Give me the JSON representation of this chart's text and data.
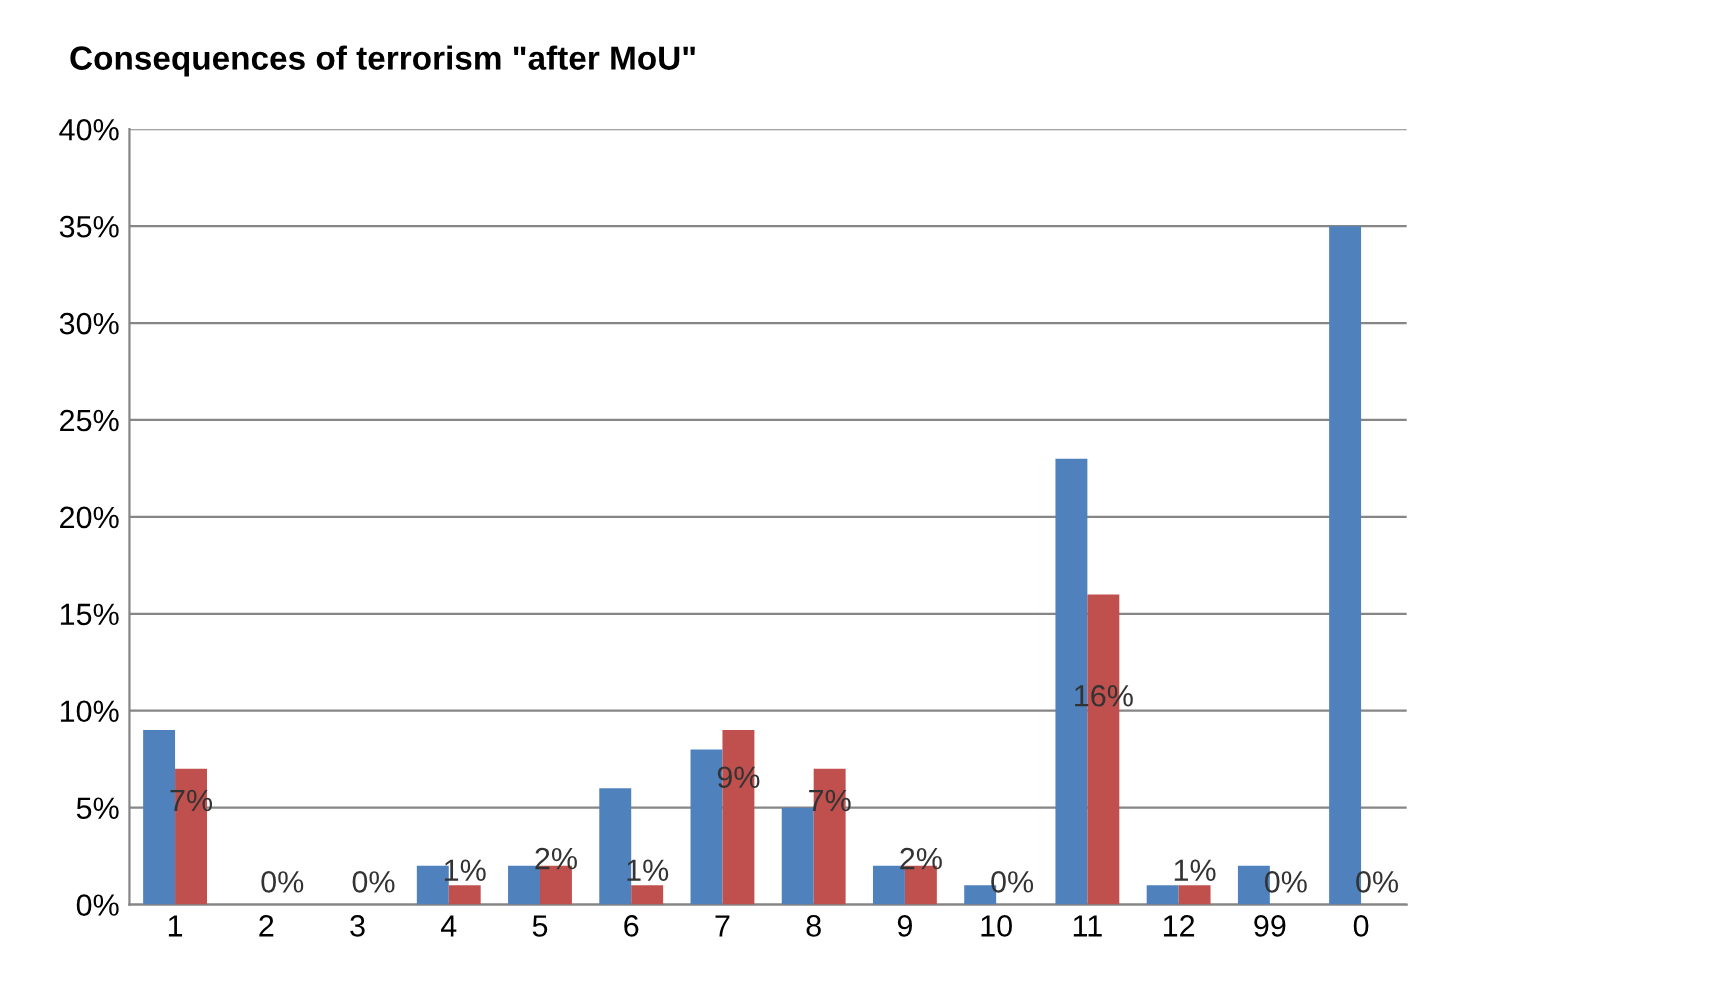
{
  "chart_data": {
    "type": "bar",
    "title": "Consequences of terrorism \"after MoU\"",
    "categories": [
      "1",
      "2",
      "3",
      "4",
      "5",
      "6",
      "7",
      "8",
      "9",
      "10",
      "11",
      "12",
      "99",
      "0"
    ],
    "series": [
      {
        "color": "#4f81bd",
        "values": [
          9,
          0,
          0,
          2,
          2,
          6,
          8,
          5,
          2,
          1,
          23,
          1,
          2,
          35
        ]
      },
      {
        "color": "#c0504d",
        "values": [
          7,
          0,
          0,
          1,
          2,
          1,
          9,
          7,
          2,
          0,
          16,
          1,
          0,
          0
        ],
        "value_labels": [
          "7%",
          "0%",
          "0%",
          "1%",
          "2%",
          "1%",
          "9%",
          "7%",
          "2%",
          "0%",
          "16%",
          "1%",
          "0%",
          "0%"
        ]
      }
    ],
    "ylim": [
      0,
      40
    ],
    "yticks": [
      {
        "value": 0,
        "label": "0%"
      },
      {
        "value": 5,
        "label": "5%"
      },
      {
        "value": 10,
        "label": "10%"
      },
      {
        "value": 15,
        "label": "15%"
      },
      {
        "value": 20,
        "label": "20%"
      },
      {
        "value": 25,
        "label": "25%"
      },
      {
        "value": 30,
        "label": "30%"
      },
      {
        "value": 35,
        "label": "35%"
      },
      {
        "value": 40,
        "label": "40%"
      }
    ],
    "grid": "y"
  }
}
